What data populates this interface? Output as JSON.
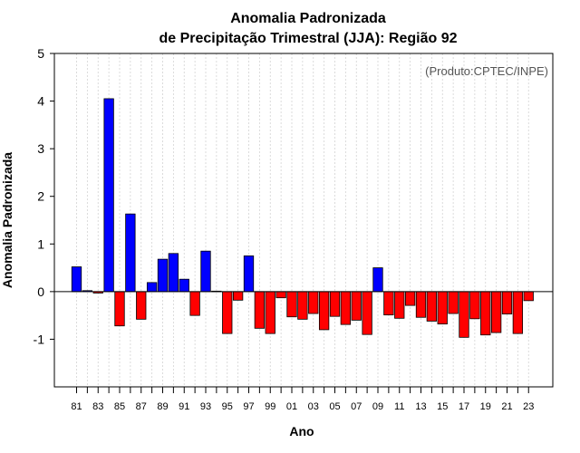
{
  "chart_data": {
    "type": "bar",
    "title_line1": "Anomalia Padronizada",
    "title_line2": "de Precipitação Trimestral (JJA): Região 92",
    "xlabel": "Ano",
    "ylabel": "Anomalia Padronizada",
    "credit": "(Produto:CPTEC/INPE)",
    "ylim": [
      -2,
      5
    ],
    "yticks": [
      -1,
      0,
      1,
      2,
      3,
      4,
      5
    ],
    "positive_color": "#0000ff",
    "negative_color": "#ff0000",
    "categories": [
      "81",
      "82",
      "83",
      "84",
      "85",
      "86",
      "87",
      "88",
      "89",
      "90",
      "91",
      "92",
      "93",
      "94",
      "95",
      "96",
      "97",
      "98",
      "99",
      "00",
      "01",
      "02",
      "03",
      "04",
      "05",
      "06",
      "07",
      "08",
      "09",
      "10",
      "11",
      "12",
      "13",
      "14",
      "15",
      "16",
      "17",
      "18",
      "19",
      "20",
      "21",
      "22",
      "23"
    ],
    "xtick_labels": [
      "81",
      "83",
      "85",
      "87",
      "89",
      "91",
      "93",
      "95",
      "97",
      "99",
      "01",
      "03",
      "05",
      "07",
      "09",
      "11",
      "13",
      "15",
      "17",
      "19",
      "21",
      "23"
    ],
    "values": [
      0.52,
      0.02,
      -0.03,
      4.05,
      -0.72,
      1.63,
      -0.58,
      0.19,
      0.68,
      0.8,
      0.26,
      -0.5,
      0.85,
      0.01,
      -0.88,
      -0.18,
      0.75,
      -0.77,
      -0.88,
      -0.13,
      -0.53,
      -0.58,
      -0.46,
      -0.8,
      -0.52,
      -0.69,
      -0.6,
      -0.9,
      0.5,
      -0.49,
      -0.56,
      -0.29,
      -0.54,
      -0.62,
      -0.68,
      -0.46,
      -0.96,
      -0.57,
      -0.91,
      -0.86,
      -0.47,
      -0.88,
      -0.19
    ]
  }
}
